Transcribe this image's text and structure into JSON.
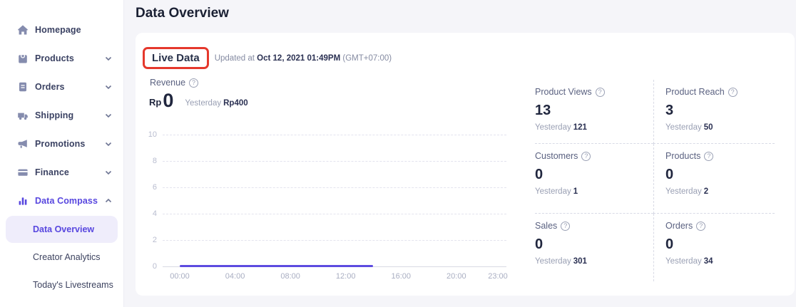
{
  "header": {
    "title": "Data Overview"
  },
  "sidebar": {
    "items": [
      {
        "label": "Homepage",
        "icon": "home-icon",
        "chevron": "none",
        "active": false
      },
      {
        "label": "Products",
        "icon": "products-icon",
        "chevron": "down",
        "active": false
      },
      {
        "label": "Orders",
        "icon": "orders-icon",
        "chevron": "down",
        "active": false
      },
      {
        "label": "Shipping",
        "icon": "shipping-icon",
        "chevron": "down",
        "active": false
      },
      {
        "label": "Promotions",
        "icon": "promotions-icon",
        "chevron": "down",
        "active": false
      },
      {
        "label": "Finance",
        "icon": "finance-icon",
        "chevron": "down",
        "active": false
      },
      {
        "label": "Data Compass",
        "icon": "data-compass-icon",
        "chevron": "up",
        "active": true
      }
    ],
    "subitems": [
      {
        "label": "Data Overview",
        "active": true
      },
      {
        "label": "Creator Analytics",
        "active": false
      },
      {
        "label": "Today's Livestreams",
        "active": false
      }
    ]
  },
  "live_data": {
    "title": "Live Data",
    "updated_prefix": "Updated at",
    "updated_time": "Oct 12, 2021 01:49PM",
    "updated_timezone": "(GMT+07:00)"
  },
  "revenue": {
    "label": "Revenue",
    "currency": "Rp",
    "value": "0",
    "yesterday_label": "Yesterday",
    "yesterday_value": "Rp400"
  },
  "chart_data": {
    "type": "line",
    "title": "Revenue",
    "ylim": [
      0,
      10
    ],
    "y_ticks_desc": [
      10,
      8,
      6,
      4,
      2,
      0
    ],
    "x_ticks": [
      "00:00",
      "04:00",
      "08:00",
      "12:00",
      "16:00",
      "20:00",
      "23:00"
    ],
    "x_hours_range": [
      0,
      23
    ],
    "series": [
      {
        "name": "Revenue today",
        "value": 0,
        "start_hour": 0,
        "end_hour": 14
      }
    ],
    "grid": "horizontal-dashed",
    "legend": "none",
    "line_color": "#5d4be0"
  },
  "stats": [
    {
      "label": "Product Views",
      "value": "13",
      "yesterday_label": "Yesterday",
      "yesterday_value": "121"
    },
    {
      "label": "Product Reach",
      "value": "3",
      "yesterday_label": "Yesterday",
      "yesterday_value": "50"
    },
    {
      "label": "Customers",
      "value": "0",
      "yesterday_label": "Yesterday",
      "yesterday_value": "1"
    },
    {
      "label": "Products",
      "value": "0",
      "yesterday_label": "Yesterday",
      "yesterday_value": "2"
    },
    {
      "label": "Sales",
      "value": "0",
      "yesterday_label": "Yesterday",
      "yesterday_value": "301"
    },
    {
      "label": "Orders",
      "value": "0",
      "yesterday_label": "Yesterday",
      "yesterday_value": "34"
    }
  ],
  "icons": {
    "help": "?"
  },
  "colors": {
    "accent_purple": "#5847df",
    "chart_line": "#5d4be0",
    "annotation_red": "#e5382c",
    "active_subitem_bg": "#efedfb",
    "page_bg": "#f5f5f9",
    "card_bg": "#ffffff"
  }
}
